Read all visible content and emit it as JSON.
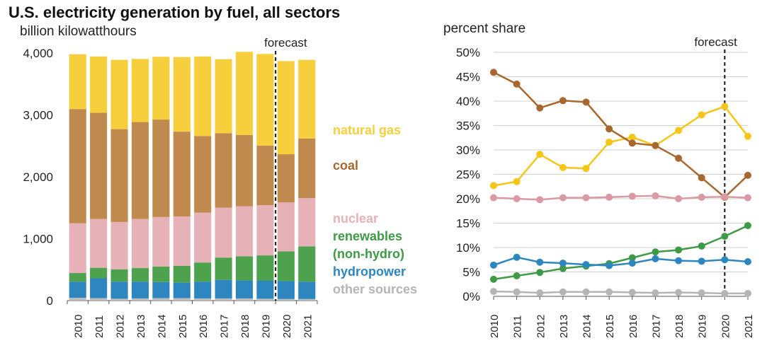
{
  "chart_data": [
    {
      "type": "bar",
      "stacked": true,
      "title": "U.S. electricity generation by fuel, all sectors",
      "ylabel": "billion kilowatthours",
      "ylim": [
        0,
        4000
      ],
      "yticks": [
        0,
        1000,
        2000,
        3000,
        4000
      ],
      "ytick_labels": [
        "0",
        "1,000",
        "2,000",
        "3,000",
        "4,000"
      ],
      "categories": [
        "2010",
        "2011",
        "2012",
        "2013",
        "2014",
        "2015",
        "2016",
        "2017",
        "2018",
        "2019",
        "2020",
        "2021"
      ],
      "forecast_label": "forecast",
      "forecast_after": "2019",
      "series": [
        {
          "name": "other sources",
          "color": "#bdbdbd",
          "values": [
            45,
            40,
            30,
            35,
            40,
            40,
            35,
            35,
            35,
            30,
            25,
            25
          ]
        },
        {
          "name": "hydropower",
          "color": "#2e86c1",
          "values": [
            260,
            320,
            275,
            270,
            260,
            250,
            270,
            300,
            290,
            290,
            290,
            280
          ]
        },
        {
          "name": "renewables (non-hydro)",
          "color": "#4ea24e",
          "values": [
            140,
            170,
            200,
            220,
            250,
            270,
            310,
            360,
            390,
            410,
            480,
            570
          ]
        },
        {
          "name": "nuclear",
          "color": "#e6b2b8",
          "values": [
            805,
            790,
            765,
            795,
            800,
            800,
            805,
            805,
            810,
            810,
            790,
            780
          ]
        },
        {
          "name": "coal",
          "color": "#c08a4e",
          "values": [
            1845,
            1715,
            1500,
            1565,
            1575,
            1370,
            1240,
            1205,
            1150,
            965,
            780,
            965
          ]
        },
        {
          "name": "natural gas",
          "color": "#f7cf3c",
          "values": [
            885,
            910,
            1120,
            1020,
            1015,
            1205,
            1285,
            1195,
            1345,
            1480,
            1505,
            1270
          ]
        }
      ],
      "legend_entries": [
        {
          "label": "natural gas",
          "color": "#f7cf3c"
        },
        {
          "label": "coal",
          "color": "#a8672e"
        },
        {
          "label": "nuclear",
          "color": "#e6b2b8"
        },
        {
          "label": "renewables",
          "color": "#3e9a45"
        },
        {
          "label": "(non-hydro)",
          "color": "#3e9a45"
        },
        {
          "label": "hydropower",
          "color": "#2e86c1"
        },
        {
          "label": "other sources",
          "color": "#b5b5b5"
        }
      ]
    },
    {
      "type": "line",
      "ylabel": "percent share",
      "ylim": [
        0,
        50
      ],
      "yticks": [
        0,
        5,
        10,
        15,
        20,
        25,
        30,
        35,
        40,
        45,
        50
      ],
      "ytick_labels": [
        "0%",
        "5%",
        "10%",
        "15%",
        "20%",
        "25%",
        "30%",
        "35%",
        "40%",
        "45%",
        "50%"
      ],
      "x": [
        "2010",
        "2011",
        "2012",
        "2013",
        "2014",
        "2015",
        "2016",
        "2017",
        "2018",
        "2019",
        "2020",
        "2021"
      ],
      "forecast_label": "forecast",
      "forecast_at": "2020",
      "series": [
        {
          "name": "natural gas",
          "color": "#f5c518",
          "values": [
            22.7,
            23.5,
            29.1,
            26.4,
            26.2,
            31.6,
            32.6,
            30.9,
            34.0,
            37.2,
            38.9,
            32.8
          ]
        },
        {
          "name": "coal",
          "color": "#a8672e",
          "values": [
            45.9,
            43.5,
            38.6,
            40.1,
            39.8,
            34.3,
            31.4,
            30.9,
            28.3,
            24.3,
            20.3,
            24.8
          ]
        },
        {
          "name": "nuclear",
          "color": "#d99aa3",
          "values": [
            20.2,
            20.0,
            19.8,
            20.2,
            20.2,
            20.3,
            20.5,
            20.6,
            20.0,
            20.3,
            20.4,
            20.2
          ]
        },
        {
          "name": "renewables (non-hydro)",
          "color": "#3e9a45",
          "values": [
            3.5,
            4.2,
            4.9,
            5.7,
            6.2,
            6.7,
            7.9,
            9.1,
            9.5,
            10.3,
            12.3,
            14.5
          ]
        },
        {
          "name": "hydropower",
          "color": "#2e86c1",
          "values": [
            6.4,
            8.0,
            7.0,
            6.8,
            6.5,
            6.3,
            6.8,
            7.7,
            7.3,
            7.2,
            7.5,
            7.1
          ]
        },
        {
          "name": "other sources",
          "color": "#b5b5b5",
          "values": [
            1.0,
            0.9,
            0.7,
            0.9,
            0.9,
            0.9,
            0.8,
            0.7,
            0.8,
            0.7,
            0.6,
            0.6
          ]
        }
      ]
    }
  ]
}
